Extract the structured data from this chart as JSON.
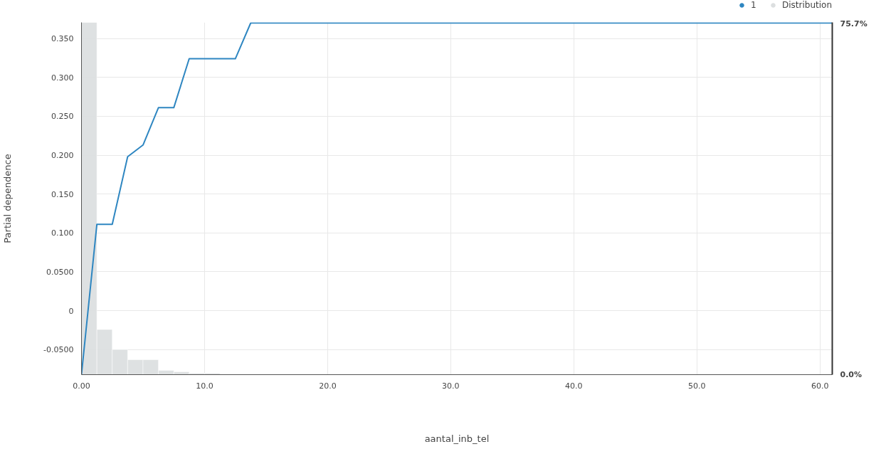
{
  "chart_data": {
    "type": "line",
    "xlabel": "aantal_inb_tel",
    "ylabel": "Partial dependence",
    "xlim": [
      0,
      61
    ],
    "xticks": [
      {
        "value": 0,
        "label": "0.00"
      },
      {
        "value": 10,
        "label": "10.0"
      },
      {
        "value": 20,
        "label": "20.0"
      },
      {
        "value": 30,
        "label": "30.0"
      },
      {
        "value": 40,
        "label": "40.0"
      },
      {
        "value": 50,
        "label": "50.0"
      },
      {
        "value": 60,
        "label": "60.0"
      }
    ],
    "ylim": [
      -0.0823,
      0.3707
    ],
    "yticks": [
      {
        "value": -0.05,
        "label": "-0.0500"
      },
      0,
      {
        "value": 0.05,
        "label": "0.0500"
      },
      {
        "value": 0.1,
        "label": "0.100"
      },
      {
        "value": 0.15,
        "label": "0.150"
      },
      {
        "value": 0.2,
        "label": "0.200"
      },
      {
        "value": 0.25,
        "label": "0.250"
      },
      {
        "value": 0.3,
        "label": "0.300"
      },
      {
        "value": 0.35,
        "label": "0.350"
      }
    ],
    "y2lim": [
      0,
      75.7
    ],
    "y2ticks": [
      {
        "value": 0,
        "label": "0.0%"
      },
      {
        "value": 75.7,
        "label": "75.7%"
      }
    ],
    "grid": true,
    "legend": "top right",
    "marker": "none",
    "line_style": "solid",
    "series": [
      {
        "name": "1",
        "color": "#2e86c1",
        "x": [
          0,
          1.25,
          2.5,
          3.75,
          5,
          6.25,
          7.5,
          8.75,
          12.5,
          13.75,
          61
        ],
        "values": [
          -0.082,
          0.111,
          0.111,
          0.198,
          0.213,
          0.261,
          0.261,
          0.324,
          0.324,
          0.37,
          0.37
        ]
      },
      {
        "name": "Distribution",
        "type": "histogram",
        "axis": "y2",
        "color": "#dcdfe0",
        "bins": [
          0,
          1.25,
          2.5,
          3.75,
          5,
          6.25,
          7.5,
          8.75,
          10,
          11.25
        ],
        "values": [
          75.7,
          9.7,
          5.4,
          3.2,
          3.2,
          0.9,
          0.6,
          0.3,
          0.3
        ]
      }
    ]
  }
}
